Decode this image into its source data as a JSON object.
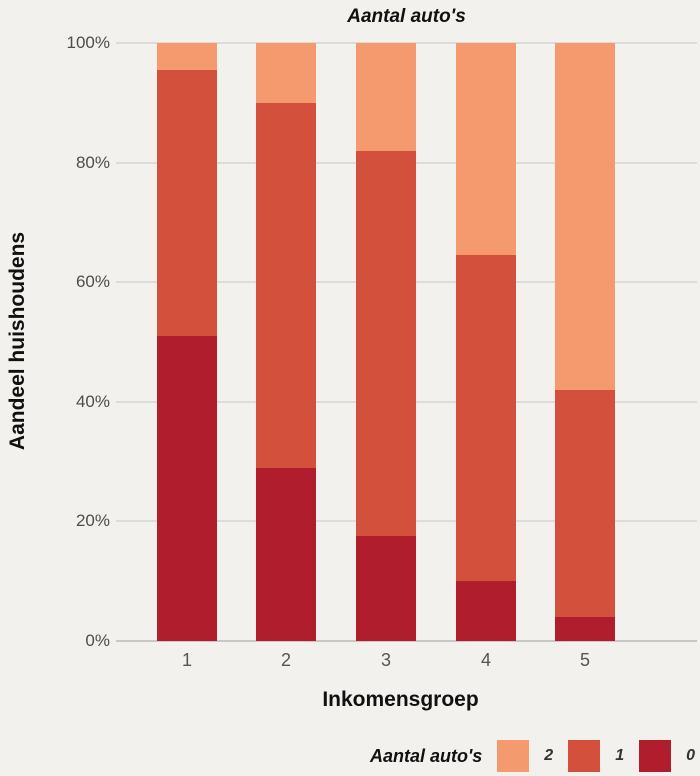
{
  "chart_data": {
    "type": "bar",
    "subtype": "stacked-100-percent",
    "title": "Aantal auto's",
    "xlabel": "Inkomensgroep",
    "ylabel": "Aandeel huishoudens",
    "categories": [
      "1",
      "2",
      "3",
      "4",
      "5"
    ],
    "series": [
      {
        "name": "0",
        "color": "#B01E2E",
        "values": [
          51,
          29,
          17.5,
          10,
          4
        ]
      },
      {
        "name": "1",
        "color": "#D2503C",
        "values": [
          44.5,
          61,
          64.5,
          54.5,
          38
        ]
      },
      {
        "name": "2",
        "color": "#F59A6F",
        "values": [
          4.5,
          10,
          18,
          35.5,
          58
        ]
      }
    ],
    "stack_order_bottom_to_top": [
      "0",
      "1",
      "2"
    ],
    "ylim": [
      0,
      100
    ],
    "y_ticks": [
      {
        "percent": 0,
        "label": "0%"
      },
      {
        "percent": 20,
        "label": "20%"
      },
      {
        "percent": 40,
        "label": "40%"
      },
      {
        "percent": 60,
        "label": "60%"
      },
      {
        "percent": 80,
        "label": "80%"
      },
      {
        "percent": 100,
        "label": "100%"
      }
    ],
    "grid": true,
    "legend": {
      "title": "Aantal auto's",
      "position": "bottom-right",
      "entries": [
        {
          "label": "2",
          "color": "#F59A6F"
        },
        {
          "label": "1",
          "color": "#D2503C"
        },
        {
          "label": "0",
          "color": "#B01E2E"
        }
      ]
    },
    "colors": {
      "background": "#F2F1EE",
      "gridline": "#DCDCDC",
      "axis_line": "#C8C8C8",
      "tick_text": "#4D4D4D",
      "title_text": "#111111"
    }
  }
}
